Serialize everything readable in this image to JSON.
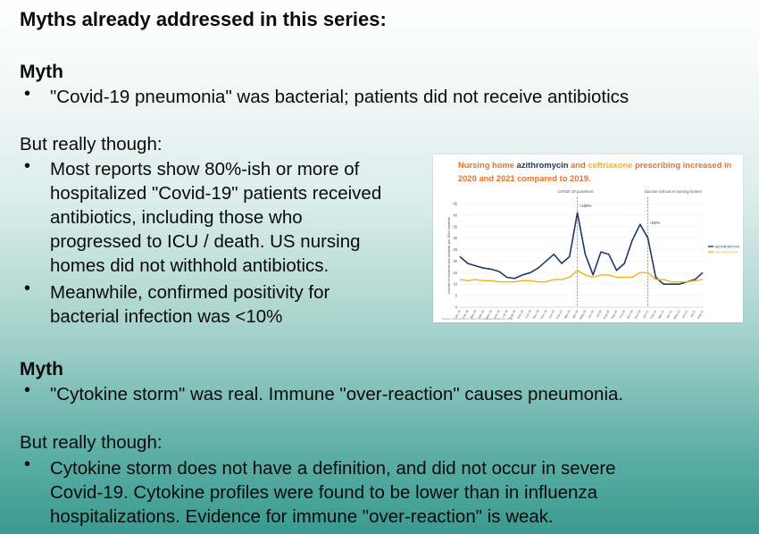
{
  "slide": {
    "title": "Myths already addressed in this series:",
    "section1": {
      "myth_heading": "Myth",
      "myth_text": "\"Covid-19 pneumonia\" was bacterial; patients did not receive antibiotics",
      "rebuttal_heading": "But really though:",
      "bullet1_lines": [
        "Most reports show 80%-ish or more of",
        "hospitalized \"Covid-19\" patients received",
        "antibiotics, including those who",
        "progressed to ICU / death. US nursing",
        "homes did not withhold antibiotics."
      ],
      "bullet2_lines": [
        "Meanwhile, confirmed positivity for",
        "bacterial infection was <10%"
      ]
    },
    "section2": {
      "myth_heading": "Myth",
      "myth_text": "\"Cytokine storm\" was real. Immune \"over-reaction\" causes pneumonia.",
      "rebuttal_heading": "But really though:",
      "bullet1_lines": [
        "Cytokine storm does not have a definition, and did not occur in severe",
        "Covid-19. Cytokine profiles were found to be lower than in influenza",
        "hospitalizations. Evidence for immune \"over-reaction\" is weak."
      ]
    },
    "bullet_char": "•"
  },
  "chart_data": {
    "type": "line",
    "title_parts": [
      {
        "text": "Nursing home ",
        "color": "#e8722c"
      },
      {
        "text": "azithromycin",
        "color": "#1f3864"
      },
      {
        "text": " and ",
        "color": "#e8722c"
      },
      {
        "text": "ceftriaxone",
        "color": "#f2b511"
      },
      {
        "text": " prescribing increased in",
        "color": "#e8722c"
      }
    ],
    "title_line2": "2020 and 2021 compared to 2019.",
    "ylabel": "Number of residents with antibiotic per 1000 residents",
    "ylim": [
      0,
      45
    ],
    "yticks": [
      0,
      5,
      10,
      15,
      20,
      25,
      30,
      35,
      40,
      45
    ],
    "annotations": [
      {
        "text": "COVID-19 pandemic"
      },
      {
        "text": "Vaccine roll-out in nursing homes"
      },
      {
        "text": "+150%"
      },
      {
        "text": "+82%"
      }
    ],
    "source": "Source: Thornton et al. Infect Control Hosp Epidemiol. 2023",
    "series": [
      {
        "name": "AZITHROMYCIN",
        "color": "#1f3864",
        "values": [
          22,
          19,
          18,
          17,
          16.5,
          15.5,
          13,
          12.5,
          14,
          15,
          17,
          20,
          23,
          19,
          22,
          41,
          23,
          14,
          24,
          23,
          16,
          19,
          29,
          36,
          30,
          13,
          10,
          10,
          10,
          11,
          12,
          15
        ]
      },
      {
        "name": "CEFTRIAXONE",
        "color": "#f2b511",
        "values": [
          12,
          11.5,
          12,
          11.5,
          11.5,
          11,
          11,
          11,
          11.5,
          11.5,
          11,
          11,
          12,
          12,
          13,
          16,
          14,
          13,
          14,
          14,
          13,
          13,
          13,
          15,
          15,
          12,
          12,
          11,
          11,
          11,
          11.5,
          12
        ]
      }
    ],
    "x_tick_labels": [
      "Jan-19",
      "Feb-19",
      "Mar-19",
      "Apr-19",
      "May-19",
      "Jun-19",
      "Jul-19",
      "Aug-19",
      "Sep-19",
      "Oct-19",
      "Nov-19",
      "Dec-19",
      "Jan-20",
      "Feb-20",
      "Mar-20",
      "Apr-20",
      "May-20",
      "Jun-20",
      "Jul-20",
      "Aug-20",
      "Sep-20",
      "Oct-20",
      "Nov-20",
      "Dec-20",
      "Jan-21",
      "Feb-21",
      "Mar-21",
      "Apr-21",
      "May-21",
      "Jun-21",
      "Jul-21",
      "Aug-21"
    ],
    "pandemic_index": 15,
    "vaccine_index": 24
  }
}
